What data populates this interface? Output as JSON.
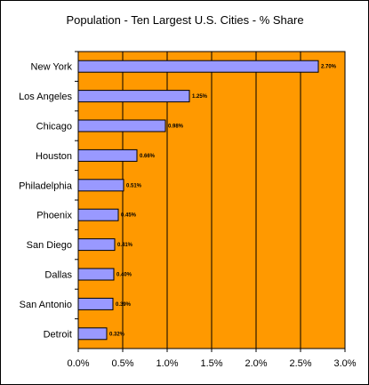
{
  "chart_data": {
    "type": "bar",
    "orientation": "horizontal",
    "title": "Population - Ten Largest U.S. Cities - % Share",
    "xlabel": "",
    "ylabel": "",
    "categories": [
      "New York",
      "Los Angeles",
      "Chicago",
      "Houston",
      "Philadelphia",
      "Phoenix",
      "San Diego",
      "Dallas",
      "San Antonio",
      "Detroit"
    ],
    "values": [
      2.7,
      1.25,
      0.98,
      0.66,
      0.51,
      0.45,
      0.41,
      0.4,
      0.39,
      0.32
    ],
    "data_labels": [
      "2.70%",
      "1.25%",
      "0.98%",
      "0.66%",
      "0.51%",
      "0.45%",
      "0.41%",
      "0.40%",
      "0.39%",
      "0.32%"
    ],
    "xlim": [
      0,
      3.0
    ],
    "ticks": [
      0,
      0.5,
      1.0,
      1.5,
      2.0,
      2.5,
      3.0
    ],
    "tick_labels": [
      "0.0%",
      "0.5%",
      "1.0%",
      "1.5%",
      "2.0%",
      "2.5%",
      "3.0%"
    ],
    "grid": true,
    "legend": "none",
    "colors": {
      "plot_background": "#ff9900",
      "bar_fill": "#9999ff",
      "bar_stroke": "#000000",
      "gridline": "#000000"
    }
  }
}
